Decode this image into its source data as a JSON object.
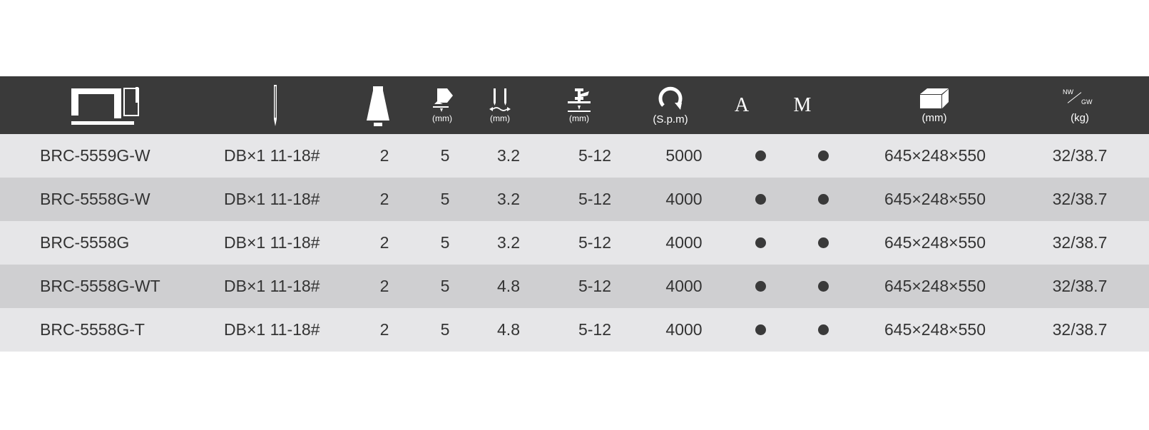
{
  "header": {
    "machine_icon": "sewing-machine-icon",
    "needle_icon": "needle-icon",
    "needles_icon": "thread-cone-icon",
    "stitch_length_icon": "stitch-length-icon",
    "stitch_length_unit": "(mm)",
    "needle_gauge_icon": "needle-gauge-icon",
    "needle_gauge_unit": "(mm)",
    "presser_lift_icon": "presser-foot-lift-icon",
    "presser_lift_unit": "(mm)",
    "speed_icon": "rotation-icon",
    "speed_unit": "(S.p.m)",
    "auto_label": "A",
    "manual_label": "M",
    "package_icon": "package-box-icon",
    "package_unit": "(mm)",
    "weight_nw": "NW",
    "weight_gw": "GW",
    "weight_unit": "(kg)"
  },
  "rows": [
    {
      "model": "BRC-5559G-W",
      "needle": "DB×1 11-18#",
      "needles": "2",
      "stitch": "5",
      "gauge": "3.2",
      "lift": "5-12",
      "speed": "5000",
      "auto": true,
      "manual": true,
      "size": "645×248×550",
      "weight": "32/38.7"
    },
    {
      "model": "BRC-5558G-W",
      "needle": "DB×1 11-18#",
      "needles": "2",
      "stitch": "5",
      "gauge": "3.2",
      "lift": "5-12",
      "speed": "4000",
      "auto": true,
      "manual": true,
      "size": "645×248×550",
      "weight": "32/38.7"
    },
    {
      "model": "BRC-5558G",
      "needle": "DB×1 11-18#",
      "needles": "2",
      "stitch": "5",
      "gauge": "3.2",
      "lift": "5-12",
      "speed": "4000",
      "auto": true,
      "manual": true,
      "size": "645×248×550",
      "weight": "32/38.7"
    },
    {
      "model": "BRC-5558G-WT",
      "needle": "DB×1 11-18#",
      "needles": "2",
      "stitch": "5",
      "gauge": "4.8",
      "lift": "5-12",
      "speed": "4000",
      "auto": true,
      "manual": true,
      "size": "645×248×550",
      "weight": "32/38.7"
    },
    {
      "model": "BRC-5558G-T",
      "needle": "DB×1 11-18#",
      "needles": "2",
      "stitch": "5",
      "gauge": "4.8",
      "lift": "5-12",
      "speed": "4000",
      "auto": true,
      "manual": true,
      "size": "645×248×550",
      "weight": "32/38.7"
    }
  ],
  "colors": {
    "header_bg": "#3a3a3a",
    "row_light": "#e6e6e8",
    "row_dark": "#cfcfd1",
    "text": "#333333",
    "dot": "#3a3a3a"
  }
}
